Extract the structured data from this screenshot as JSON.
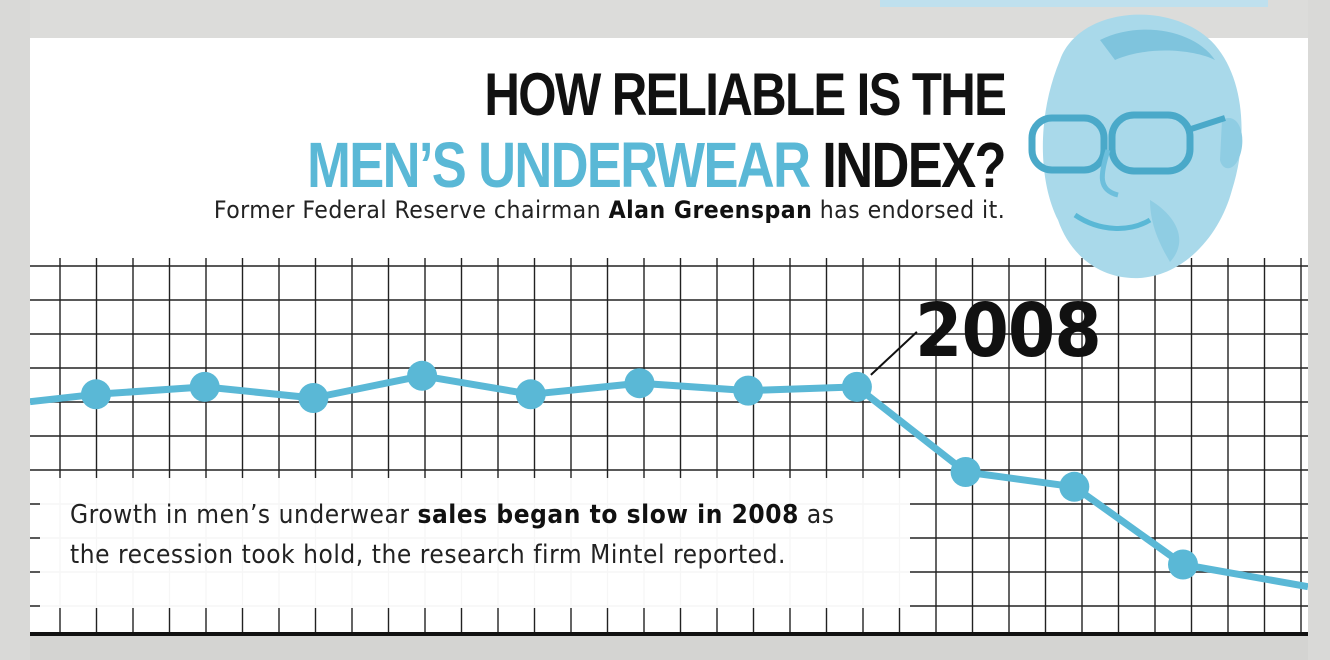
{
  "title": {
    "line1": "HOW RELIABLE IS THE",
    "line2_accent": "MEN’S UNDERWEAR",
    "line2_rest": " INDEX?"
  },
  "subtitle": {
    "pre": "Former Federal Reserve chairman ",
    "bold": "Alan Greenspan",
    "post": " has endorsed it."
  },
  "annotation": {
    "line1_pre": "Growth in men’s underwear ",
    "line1_bold": "sales began to slow in 2008",
    "line1_post": " as",
    "line2": "the recession took hold, the research firm Mintel reported."
  },
  "colors": {
    "accent": "#5ab8d6",
    "grid": "#222222",
    "portrait": "#8fcde3"
  },
  "chart_data": {
    "type": "line",
    "title": "",
    "xlabel": "",
    "ylabel": "",
    "grid": true,
    "callout_label": "2008",
    "callout_index": 7,
    "series": [
      {
        "values": [
          4.1,
          4.3,
          4.0,
          4.6,
          4.1,
          4.4,
          4.2,
          4.3,
          2.0,
          1.6,
          -0.5,
          -1.2
        ]
      }
    ],
    "ylim": [
      -2,
      8
    ],
    "trend_start": 3.9,
    "trend_end": -1.1
  }
}
